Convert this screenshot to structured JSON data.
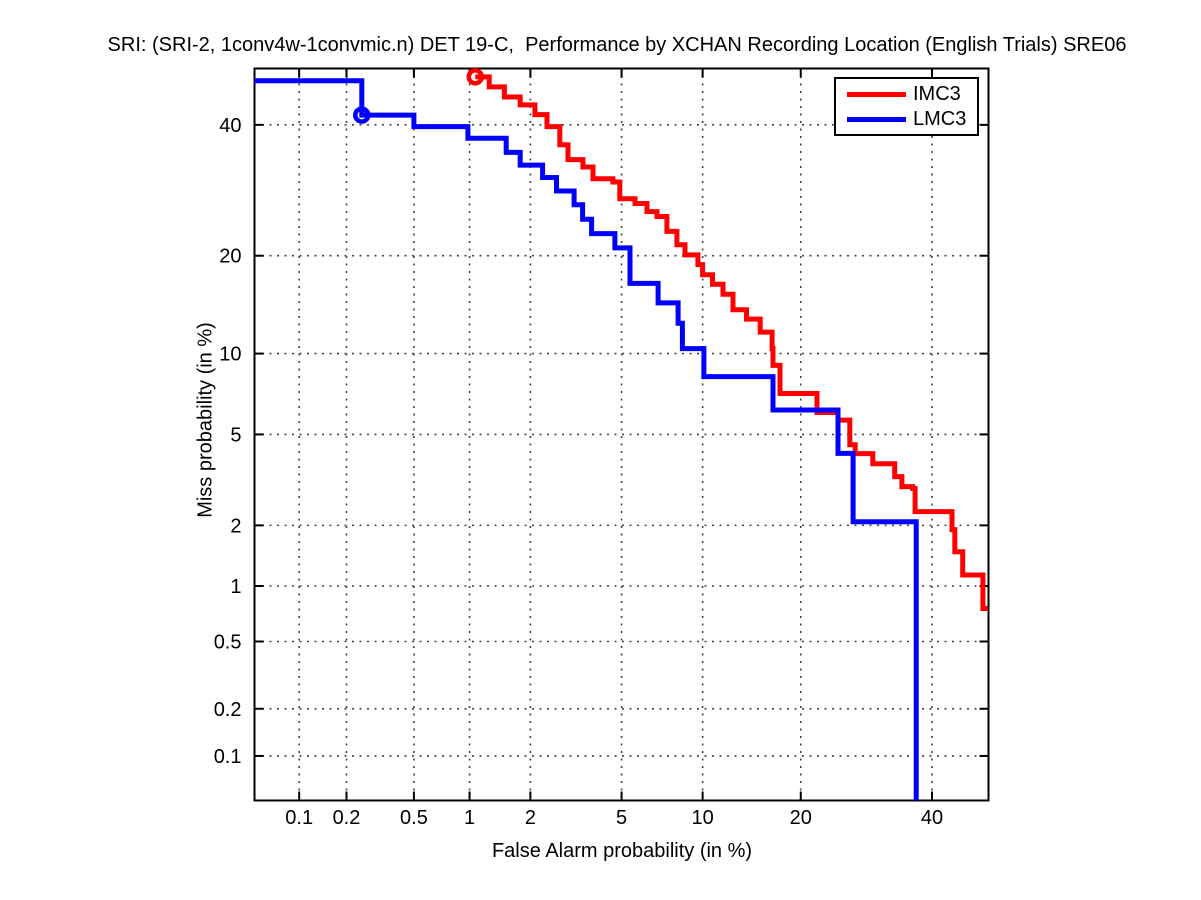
{
  "figure": {
    "kind": "MATLAB-style DET curve figure",
    "background_color": "#ffffff"
  },
  "chart_data": {
    "type": "line",
    "subtype": "DET_curve_staircase",
    "title": "SRI: (SRI-2, 1conv4w-1convmic.n) DET 19-C,  Performance by XCHAN Recording Location (English Trials) SRE06",
    "xlabel": "False Alarm probability (in %)",
    "ylabel": "Miss probability (in %)",
    "axis_scale": "normal-deviate (probit) scale on both axes",
    "xlim_pct": [
      0.05,
      50
    ],
    "ylim_pct": [
      0.05,
      50
    ],
    "x_ticks_pct": [
      0.1,
      0.2,
      0.5,
      1,
      2,
      5,
      10,
      20,
      40
    ],
    "x_tick_labels": [
      "0.1",
      "0.2",
      "0.5",
      "1",
      "2",
      "5",
      "10",
      "20",
      "40"
    ],
    "y_ticks_pct": [
      40,
      20,
      10,
      5,
      2,
      1,
      0.5,
      0.2,
      0.1
    ],
    "y_tick_labels": [
      "40",
      "20",
      "10",
      "5",
      "2",
      "1",
      "0.5",
      "0.2",
      "0.1"
    ],
    "grid": "dotted",
    "grid_color": "#444444",
    "axis_color": "#000000",
    "legend_position": "upper right",
    "series": [
      {
        "name": "IMC3",
        "color": "#ff0000",
        "line_width": 5,
        "marker": "o",
        "marker_point_pct": [
          1.07,
          48.5
        ],
        "points_pct": [
          [
            1.07,
            48.5
          ],
          [
            1.26,
            46.7
          ],
          [
            1.5,
            44.9
          ],
          [
            1.79,
            43.5
          ],
          [
            2.1,
            41.8
          ],
          [
            2.39,
            39.7
          ],
          [
            2.73,
            36.6
          ],
          [
            2.97,
            34.1
          ],
          [
            3.45,
            32.9
          ],
          [
            3.81,
            31.0
          ],
          [
            4.61,
            30.5
          ],
          [
            4.92,
            27.9
          ],
          [
            5.65,
            27.2
          ],
          [
            6.29,
            26.0
          ],
          [
            6.86,
            25.3
          ],
          [
            7.47,
            23.2
          ],
          [
            8.12,
            21.4
          ],
          [
            8.68,
            20.1
          ],
          [
            9.63,
            18.9
          ],
          [
            10.0,
            17.7
          ],
          [
            10.8,
            16.6
          ],
          [
            11.7,
            15.5
          ],
          [
            12.6,
            13.9
          ],
          [
            13.9,
            13.0
          ],
          [
            15.3,
            11.8
          ],
          [
            16.6,
            10.4
          ],
          [
            16.7,
            9.1
          ],
          [
            17.5,
            7.2
          ],
          [
            22.1,
            6.1
          ],
          [
            25.0,
            5.7
          ],
          [
            26.7,
            4.54
          ],
          [
            27.5,
            4.17
          ],
          [
            30.2,
            3.78
          ],
          [
            33.7,
            3.33
          ],
          [
            34.9,
            3.01
          ],
          [
            36.7,
            2.95
          ],
          [
            37.1,
            2.32
          ],
          [
            43.5,
            1.91
          ],
          [
            44.0,
            1.49
          ],
          [
            45.4,
            1.14
          ],
          [
            49.0,
            0.76
          ],
          [
            49.9,
            0.76
          ]
        ]
      },
      {
        "name": "LMC3",
        "color": "#0000ff",
        "line_width": 5,
        "marker": "o",
        "marker_point_pct": [
          0.248,
          41.7
        ],
        "points_pct": [
          [
            0.05,
            47.8
          ],
          [
            0.248,
            41.7
          ],
          [
            0.5,
            39.7
          ],
          [
            0.98,
            37.7
          ],
          [
            1.53,
            35.3
          ],
          [
            1.79,
            33.2
          ],
          [
            2.28,
            31.2
          ],
          [
            2.64,
            29.1
          ],
          [
            3.16,
            27.0
          ],
          [
            3.44,
            24.9
          ],
          [
            3.76,
            22.9
          ],
          [
            4.7,
            21.0
          ],
          [
            5.4,
            16.7
          ],
          [
            6.93,
            14.6
          ],
          [
            8.2,
            12.6
          ],
          [
            8.5,
            10.4
          ],
          [
            10.1,
            8.3
          ],
          [
            16.7,
            6.24
          ],
          [
            25.0,
            4.18
          ],
          [
            27.2,
            2.08
          ],
          [
            37.3,
            0.05
          ]
        ]
      }
    ]
  }
}
